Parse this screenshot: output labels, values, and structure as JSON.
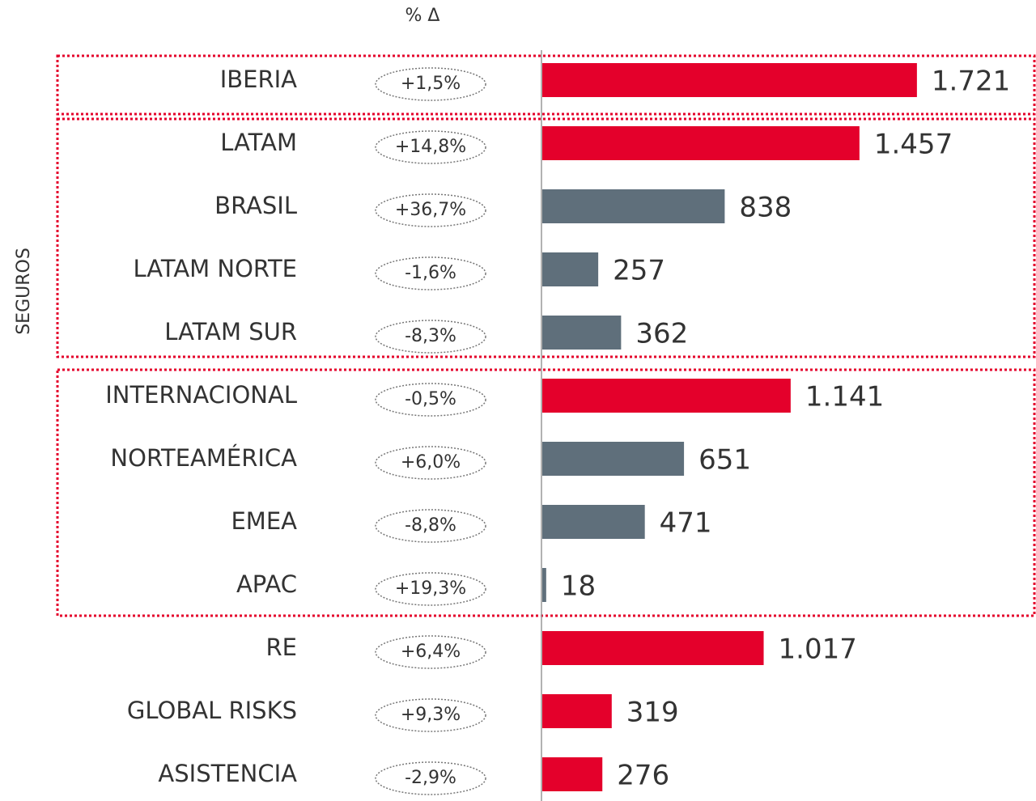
{
  "chart_data": {
    "type": "bar",
    "orientation": "horizontal",
    "header": "% Δ",
    "side_label": "SEGUROS",
    "categories": [
      "IBERIA",
      "LATAM",
      "BRASIL",
      "LATAM NORTE",
      "LATAM SUR",
      "INTERNACIONAL",
      "NORTEAMÉRICA",
      "EMEA",
      "APAC",
      "RE",
      "GLOBAL RISKS",
      "ASISTENCIA"
    ],
    "values": [
      1721,
      1457,
      838,
      257,
      362,
      1141,
      651,
      471,
      18,
      1017,
      319,
      276
    ],
    "value_labels": [
      "1.721",
      "1.457",
      "838",
      "257",
      "362",
      "1.141",
      "651",
      "471",
      "18",
      "1.017",
      "319",
      "276"
    ],
    "changes": [
      "+1,5%",
      "+14,8%",
      "+36,7%",
      "-1,6%",
      "-8,3%",
      "-0,5%",
      "+6,0%",
      "-8,8%",
      "+19,3%",
      "+6,4%",
      "+9,3%",
      "-2,9%"
    ],
    "colors": [
      "#e4002b",
      "#e4002b",
      "#5f6f7b",
      "#5f6f7b",
      "#5f6f7b",
      "#e4002b",
      "#5f6f7b",
      "#5f6f7b",
      "#5f6f7b",
      "#e4002b",
      "#e4002b",
      "#e4002b"
    ],
    "xlim": [
      0,
      2268
    ]
  }
}
